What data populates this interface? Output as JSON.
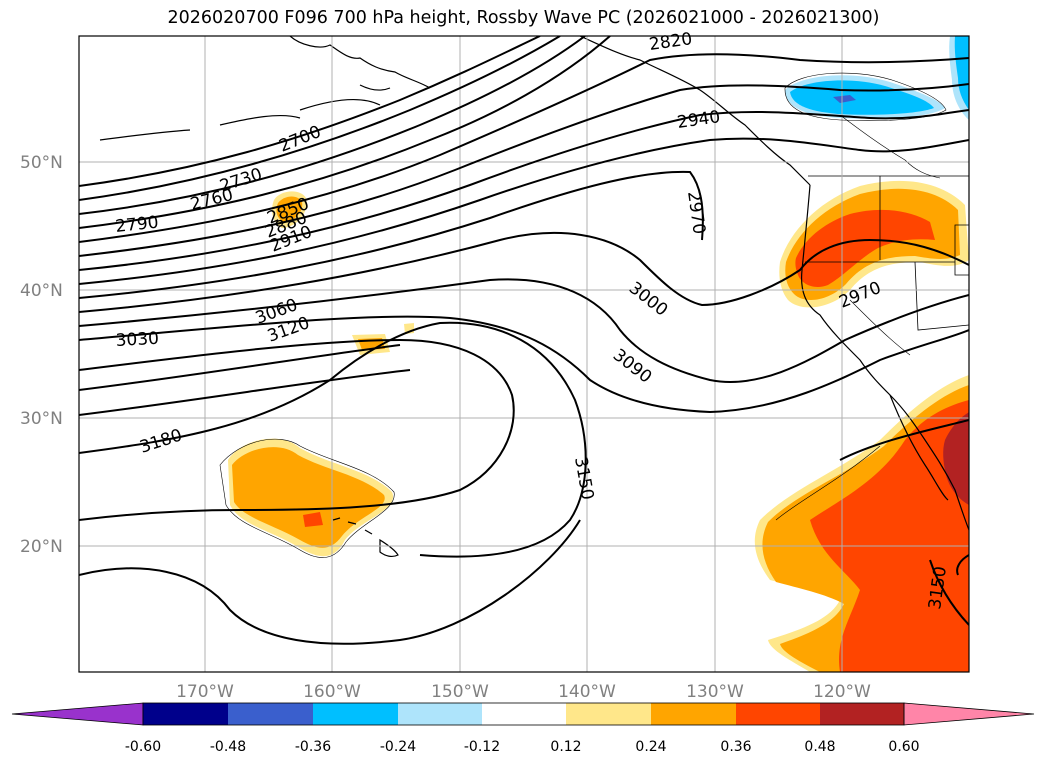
{
  "title": "2026020700 F096 700 hPa height, Rossby Wave PC (2026021000 - 2026021300)",
  "lat_labels": [
    "50°N",
    "40°N",
    "30°N",
    "20°N"
  ],
  "lon_labels": [
    "170°W",
    "160°W",
    "150°W",
    "140°W",
    "130°W",
    "120°W"
  ],
  "contour_labels": [
    "2700",
    "2730",
    "2760",
    "2790",
    "2850",
    "2880",
    "2910",
    "3030",
    "3060",
    "3120",
    "3180",
    "3150",
    "3000",
    "3090",
    "2970",
    "2970",
    "3150",
    "2820",
    "2940"
  ],
  "colorbar": {
    "ticks": [
      "-0.60",
      "-0.48",
      "-0.36",
      "-0.24",
      "-0.12",
      "0.12",
      "0.24",
      "0.36",
      "0.48",
      "0.60"
    ],
    "colors": [
      "#9932cc",
      "#00008b",
      "#3a5fcd",
      "#00bfff",
      "#aee4fb",
      "#ffffff",
      "#ffe78a",
      "#ffa500",
      "#ff4500",
      "#b22222",
      "#ff85a8"
    ]
  }
}
